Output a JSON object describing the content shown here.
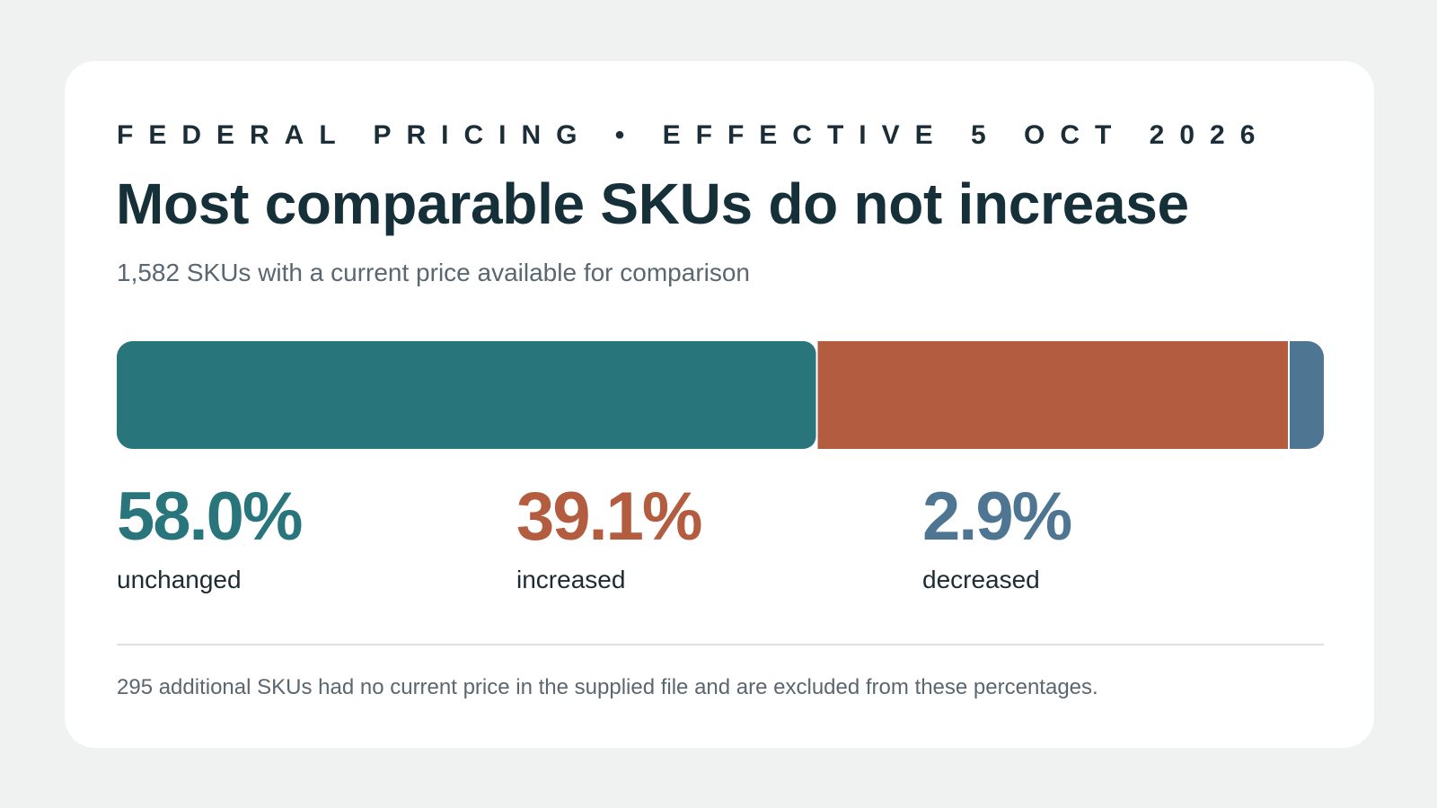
{
  "header": {
    "eyebrow": "FEDERAL PRICING • EFFECTIVE 5 OCT 2026",
    "title": "Most comparable SKUs do not increase",
    "subtitle": "1,582 SKUs with a current price available for comparison"
  },
  "chart_data": {
    "type": "bar",
    "orientation": "horizontal-stacked",
    "title": "Most comparable SKUs do not increase",
    "subtitle": "1,582 SKUs with a current price available for comparison",
    "unit": "%",
    "series": [
      {
        "name": "unchanged",
        "value": 58.0,
        "label": "58.0%",
        "color": "#28767b"
      },
      {
        "name": "increased",
        "value": 39.1,
        "label": "39.1%",
        "color": "#b45c40"
      },
      {
        "name": "decreased",
        "value": 2.9,
        "label": "2.9%",
        "color": "#4e7693"
      }
    ],
    "total": 100,
    "grid": false,
    "legend": "below"
  },
  "footer": {
    "note": "295 additional SKUs had no current price in the supplied file and are excluded from these percentages."
  }
}
